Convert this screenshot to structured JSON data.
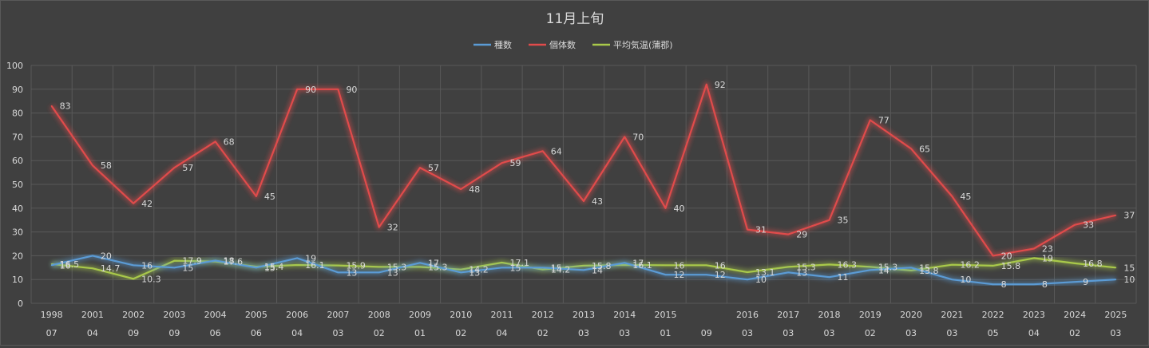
{
  "chart_data": {
    "type": "line",
    "title": "11月上旬",
    "ylim": [
      0,
      100
    ],
    "yticks": [
      0,
      10,
      20,
      30,
      40,
      50,
      60,
      70,
      80,
      90,
      100
    ],
    "grid": true,
    "legend_position": "top-center",
    "categories": [
      {
        "top": "1998",
        "bottom": "07"
      },
      {
        "top": "2001",
        "bottom": "04"
      },
      {
        "top": "2002",
        "bottom": "09"
      },
      {
        "top": "2003",
        "bottom": "09"
      },
      {
        "top": "2004",
        "bottom": "06"
      },
      {
        "top": "2005",
        "bottom": "06"
      },
      {
        "top": "2006",
        "bottom": "04"
      },
      {
        "top": "2007",
        "bottom": "03"
      },
      {
        "top": "2008",
        "bottom": "02"
      },
      {
        "top": "2009",
        "bottom": "01"
      },
      {
        "top": "2010",
        "bottom": "02"
      },
      {
        "top": "2011",
        "bottom": "04"
      },
      {
        "top": "2012",
        "bottom": "02"
      },
      {
        "top": "2013",
        "bottom": "03"
      },
      {
        "top": "2014",
        "bottom": "03"
      },
      {
        "top": "2015",
        "bottom": "01"
      },
      {
        "top": "",
        "bottom": "09"
      },
      {
        "top": "2016",
        "bottom": "03"
      },
      {
        "top": "2017",
        "bottom": "03"
      },
      {
        "top": "2018",
        "bottom": "03"
      },
      {
        "top": "2019",
        "bottom": "02"
      },
      {
        "top": "2020",
        "bottom": "03"
      },
      {
        "top": "2021",
        "bottom": "03"
      },
      {
        "top": "2022",
        "bottom": "05"
      },
      {
        "top": "2023",
        "bottom": "04"
      },
      {
        "top": "2024",
        "bottom": "02"
      },
      {
        "top": "2025",
        "bottom": "03"
      }
    ],
    "series": [
      {
        "name": "種数",
        "color": "#5b9bd5",
        "values": [
          16,
          20,
          16,
          15,
          18,
          15,
          19,
          13,
          13,
          17,
          13,
          15,
          15,
          14,
          17,
          12,
          12,
          10,
          13,
          11,
          14,
          15,
          10,
          8,
          8,
          9,
          10
        ]
      },
      {
        "name": "個体数",
        "color": "#e04b4b",
        "values": [
          83,
          58,
          42,
          57,
          68,
          45,
          90,
          90,
          32,
          57,
          48,
          59,
          64,
          43,
          70,
          40,
          92,
          31,
          29,
          35,
          77,
          65,
          45,
          20,
          23,
          33,
          37
        ]
      },
      {
        "name": "平均気温(蒲郡)",
        "color": "#a9c94a",
        "values": [
          16.5,
          14.7,
          10.3,
          17.9,
          17.6,
          15.4,
          16.1,
          15.9,
          15.3,
          15.3,
          14.2,
          17.1,
          14.2,
          15.8,
          16.1,
          16,
          16,
          13.1,
          15.3,
          16.3,
          15.3,
          13.8,
          16.2,
          15.8,
          19,
          16.8,
          15
        ]
      }
    ]
  }
}
